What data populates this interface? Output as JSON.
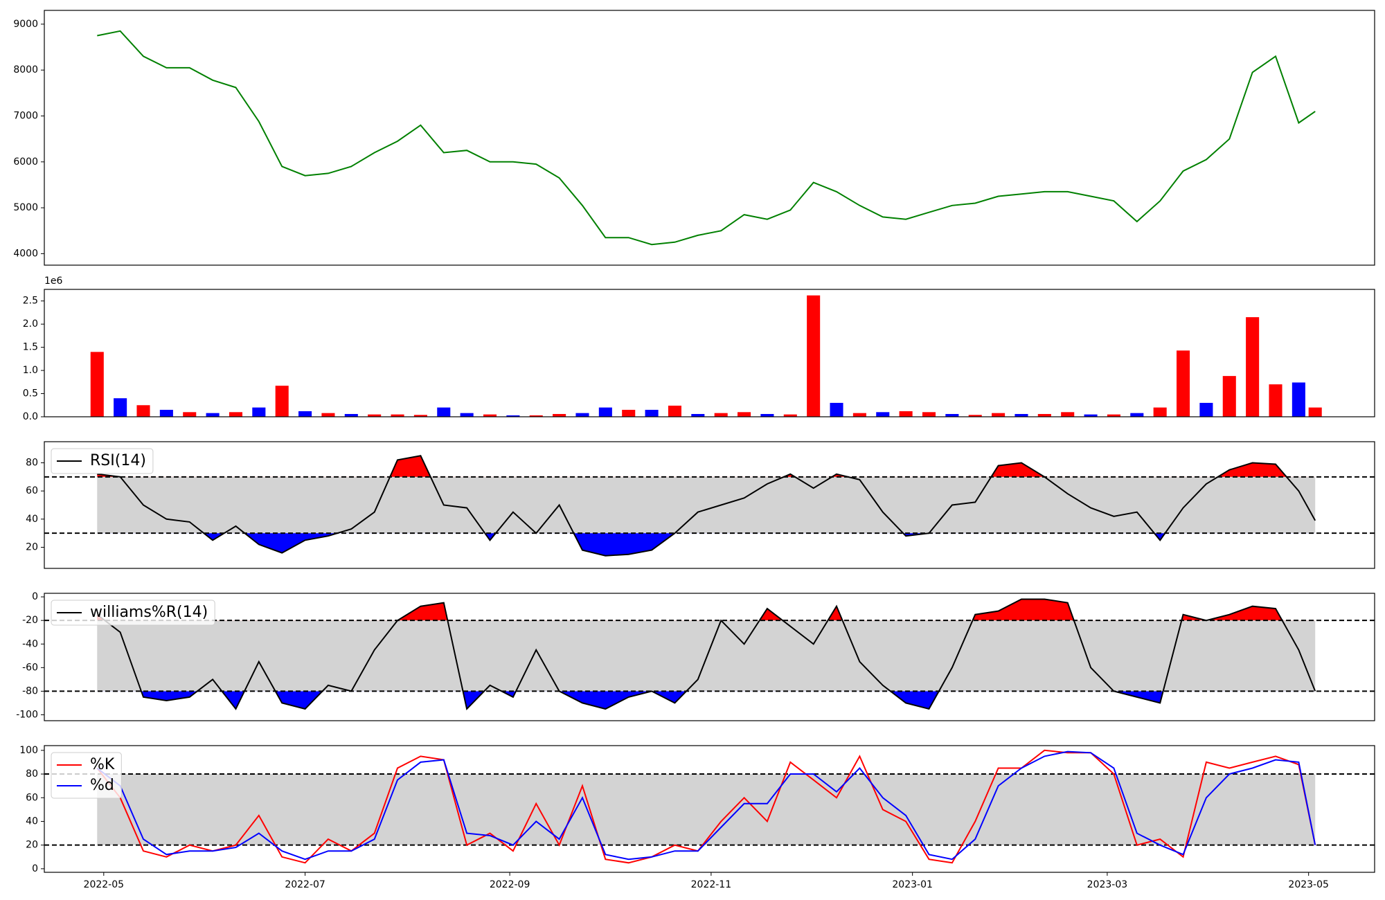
{
  "chart_data": [
    {
      "type": "line",
      "color": "#008000",
      "x": [
        "2022-04-29",
        "2022-05-06",
        "2022-05-13",
        "2022-05-20",
        "2022-05-27",
        "2022-06-03",
        "2022-06-10",
        "2022-06-17",
        "2022-06-24",
        "2022-07-01",
        "2022-07-08",
        "2022-07-15",
        "2022-07-22",
        "2022-07-29",
        "2022-08-05",
        "2022-08-12",
        "2022-08-19",
        "2022-08-26",
        "2022-09-02",
        "2022-09-09",
        "2022-09-16",
        "2022-09-23",
        "2022-09-30",
        "2022-10-07",
        "2022-10-14",
        "2022-10-21",
        "2022-10-28",
        "2022-11-04",
        "2022-11-11",
        "2022-11-18",
        "2022-11-25",
        "2022-12-02",
        "2022-12-09",
        "2022-12-16",
        "2022-12-23",
        "2022-12-30",
        "2023-01-06",
        "2023-01-13",
        "2023-01-20",
        "2023-01-27",
        "2023-02-03",
        "2023-02-10",
        "2023-02-17",
        "2023-02-24",
        "2023-03-03",
        "2023-03-10",
        "2023-03-17",
        "2023-03-24",
        "2023-03-31",
        "2023-04-07",
        "2023-04-14",
        "2023-04-21",
        "2023-04-28",
        "2023-05-03"
      ],
      "values": [
        8750,
        8850,
        8300,
        8050,
        8050,
        7780,
        7620,
        6880,
        5900,
        5700,
        5750,
        5900,
        6200,
        6450,
        6800,
        6200,
        6250,
        6000,
        6000,
        5950,
        5650,
        5050,
        4350,
        4350,
        4200,
        4250,
        4400,
        4500,
        4850,
        4750,
        4950,
        5550,
        5350,
        5050,
        4800,
        4750,
        4900,
        5050,
        5100,
        5250,
        5300,
        5350,
        5350,
        5250,
        5150,
        4700,
        5150,
        5800,
        6050,
        6500,
        7950,
        8300,
        6850,
        7100
      ],
      "xlim": [
        "2022-04-13",
        "2023-05-21"
      ],
      "ylim": [
        3750,
        9300
      ],
      "yticks": [
        4000,
        5000,
        6000,
        7000,
        8000,
        9000
      ]
    },
    {
      "type": "bar",
      "offset_label": "1e6",
      "x": [
        "2022-04-29",
        "2022-05-06",
        "2022-05-13",
        "2022-05-20",
        "2022-05-27",
        "2022-06-03",
        "2022-06-10",
        "2022-06-17",
        "2022-06-24",
        "2022-07-01",
        "2022-07-08",
        "2022-07-15",
        "2022-07-22",
        "2022-07-29",
        "2022-08-05",
        "2022-08-12",
        "2022-08-19",
        "2022-08-26",
        "2022-09-02",
        "2022-09-09",
        "2022-09-16",
        "2022-09-23",
        "2022-09-30",
        "2022-10-07",
        "2022-10-14",
        "2022-10-21",
        "2022-10-28",
        "2022-11-04",
        "2022-11-11",
        "2022-11-18",
        "2022-11-25",
        "2022-12-02",
        "2022-12-09",
        "2022-12-16",
        "2022-12-23",
        "2022-12-30",
        "2023-01-06",
        "2023-01-13",
        "2023-01-20",
        "2023-01-27",
        "2023-02-03",
        "2023-02-10",
        "2023-02-17",
        "2023-02-24",
        "2023-03-03",
        "2023-03-10",
        "2023-03-17",
        "2023-03-24",
        "2023-03-31",
        "2023-04-07",
        "2023-04-14",
        "2023-04-21",
        "2023-04-28",
        "2023-05-03"
      ],
      "values": [
        1400000,
        400000,
        250000,
        150000,
        100000,
        80000,
        100000,
        200000,
        670000,
        120000,
        80000,
        60000,
        50000,
        50000,
        40000,
        200000,
        80000,
        50000,
        30000,
        30000,
        60000,
        80000,
        200000,
        150000,
        150000,
        240000,
        60000,
        80000,
        100000,
        60000,
        50000,
        2620000,
        300000,
        80000,
        100000,
        120000,
        100000,
        60000,
        40000,
        80000,
        60000,
        60000,
        100000,
        50000,
        50000,
        80000,
        200000,
        1430000,
        300000,
        880000,
        2150000,
        700000,
        740000,
        200000
      ],
      "colors": [
        "red",
        "blue",
        "red",
        "blue",
        "red",
        "blue",
        "red",
        "blue",
        "red",
        "blue",
        "red",
        "blue",
        "red",
        "red",
        "red",
        "blue",
        "blue",
        "red",
        "blue",
        "red",
        "red",
        "blue",
        "blue",
        "red",
        "blue",
        "red",
        "blue",
        "red",
        "red",
        "blue",
        "red",
        "red",
        "blue",
        "red",
        "blue",
        "red",
        "red",
        "blue",
        "red",
        "red",
        "blue",
        "red",
        "red",
        "blue",
        "red",
        "blue",
        "red",
        "red",
        "blue",
        "red",
        "red",
        "red",
        "blue",
        "red"
      ],
      "xlim": [
        "2022-04-13",
        "2023-05-21"
      ],
      "ylim": [
        0,
        2750000
      ],
      "yticks": [
        {
          "value": 0,
          "label": "0.0"
        },
        {
          "value": 500000,
          "label": "0.5"
        },
        {
          "value": 1000000,
          "label": "1.0"
        },
        {
          "value": 1500000,
          "label": "1.5"
        },
        {
          "value": 2000000,
          "label": "2.0"
        },
        {
          "value": 2500000,
          "label": "2.5"
        }
      ]
    },
    {
      "type": "indicator",
      "legend": "upper left",
      "hlines": [
        30,
        70
      ],
      "band_color": "#d3d3d3",
      "above_color": "red",
      "below_color": "blue",
      "x": [
        "2022-04-29",
        "2022-05-06",
        "2022-05-13",
        "2022-05-20",
        "2022-05-27",
        "2022-06-03",
        "2022-06-10",
        "2022-06-17",
        "2022-06-24",
        "2022-07-01",
        "2022-07-08",
        "2022-07-15",
        "2022-07-22",
        "2022-07-29",
        "2022-08-05",
        "2022-08-12",
        "2022-08-19",
        "2022-08-26",
        "2022-09-02",
        "2022-09-09",
        "2022-09-16",
        "2022-09-23",
        "2022-09-30",
        "2022-10-07",
        "2022-10-14",
        "2022-10-21",
        "2022-10-28",
        "2022-11-04",
        "2022-11-11",
        "2022-11-18",
        "2022-11-25",
        "2022-12-02",
        "2022-12-09",
        "2022-12-16",
        "2022-12-23",
        "2022-12-30",
        "2023-01-06",
        "2023-01-13",
        "2023-01-20",
        "2023-01-27",
        "2023-02-03",
        "2023-02-10",
        "2023-02-17",
        "2023-02-24",
        "2023-03-03",
        "2023-03-10",
        "2023-03-17",
        "2023-03-24",
        "2023-03-31",
        "2023-04-07",
        "2023-04-14",
        "2023-04-21",
        "2023-04-28",
        "2023-05-03"
      ],
      "series": [
        {
          "name": "RSI(14)",
          "color": "black",
          "values": [
            72,
            70,
            50,
            40,
            38,
            25,
            35,
            22,
            16,
            25,
            28,
            33,
            45,
            82,
            85,
            50,
            48,
            25,
            45,
            30,
            50,
            18,
            14,
            15,
            18,
            30,
            45,
            50,
            55,
            65,
            72,
            62,
            72,
            68,
            45,
            28,
            30,
            50,
            52,
            78,
            80,
            70,
            58,
            48,
            42,
            45,
            25,
            48,
            65,
            75,
            80,
            79,
            60,
            39
          ]
        }
      ],
      "xlim": [
        "2022-04-13",
        "2023-05-21"
      ],
      "ylim": [
        5,
        95
      ],
      "yticks": [
        20,
        40,
        60,
        80
      ]
    },
    {
      "type": "indicator",
      "legend": "upper left",
      "hlines": [
        -80,
        -20
      ],
      "band_color": "#d3d3d3",
      "above_color": "red",
      "below_color": "blue",
      "x": [
        "2022-04-29",
        "2022-05-06",
        "2022-05-13",
        "2022-05-20",
        "2022-05-27",
        "2022-06-03",
        "2022-06-10",
        "2022-06-17",
        "2022-06-24",
        "2022-07-01",
        "2022-07-08",
        "2022-07-15",
        "2022-07-22",
        "2022-07-29",
        "2022-08-05",
        "2022-08-12",
        "2022-08-19",
        "2022-08-26",
        "2022-09-02",
        "2022-09-09",
        "2022-09-16",
        "2022-09-23",
        "2022-09-30",
        "2022-10-07",
        "2022-10-14",
        "2022-10-21",
        "2022-10-28",
        "2022-11-04",
        "2022-11-11",
        "2022-11-18",
        "2022-11-25",
        "2022-12-02",
        "2022-12-09",
        "2022-12-16",
        "2022-12-23",
        "2022-12-30",
        "2023-01-06",
        "2023-01-13",
        "2023-01-20",
        "2023-01-27",
        "2023-02-03",
        "2023-02-10",
        "2023-02-17",
        "2023-02-24",
        "2023-03-03",
        "2023-03-10",
        "2023-03-17",
        "2023-03-24",
        "2023-03-31",
        "2023-04-07",
        "2023-04-14",
        "2023-04-21",
        "2023-04-28",
        "2023-05-03"
      ],
      "series": [
        {
          "name": "williams%R(14)",
          "color": "black",
          "values": [
            -15,
            -30,
            -85,
            -88,
            -85,
            -70,
            -95,
            -55,
            -90,
            -95,
            -75,
            -80,
            -45,
            -20,
            -8,
            -5,
            -95,
            -75,
            -85,
            -45,
            -80,
            -90,
            -95,
            -85,
            -80,
            -90,
            -70,
            -20,
            -40,
            -10,
            -25,
            -40,
            -8,
            -55,
            -75,
            -90,
            -95,
            -60,
            -15,
            -12,
            -2,
            -2,
            -5,
            -60,
            -80,
            -85,
            -90,
            -15,
            -20,
            -15,
            -8,
            -10,
            -45,
            -80
          ]
        }
      ],
      "xlim": [
        "2022-04-13",
        "2023-05-21"
      ],
      "ylim": [
        -105,
        3
      ],
      "yticks": [
        -100,
        -80,
        -60,
        -40,
        -20,
        0
      ]
    },
    {
      "type": "indicator",
      "legend": "upper left",
      "hlines": [
        20,
        80
      ],
      "band_color": "#d3d3d3",
      "x": [
        "2022-04-29",
        "2022-05-06",
        "2022-05-13",
        "2022-05-20",
        "2022-05-27",
        "2022-06-03",
        "2022-06-10",
        "2022-06-17",
        "2022-06-24",
        "2022-07-01",
        "2022-07-08",
        "2022-07-15",
        "2022-07-22",
        "2022-07-29",
        "2022-08-05",
        "2022-08-12",
        "2022-08-19",
        "2022-08-26",
        "2022-09-02",
        "2022-09-09",
        "2022-09-16",
        "2022-09-23",
        "2022-09-30",
        "2022-10-07",
        "2022-10-14",
        "2022-10-21",
        "2022-10-28",
        "2022-11-04",
        "2022-11-11",
        "2022-11-18",
        "2022-11-25",
        "2022-12-02",
        "2022-12-09",
        "2022-12-16",
        "2022-12-23",
        "2022-12-30",
        "2023-01-06",
        "2023-01-13",
        "2023-01-20",
        "2023-01-27",
        "2023-02-03",
        "2023-02-10",
        "2023-02-17",
        "2023-02-24",
        "2023-03-03",
        "2023-03-10",
        "2023-03-17",
        "2023-03-24",
        "2023-03-31",
        "2023-04-07",
        "2023-04-14",
        "2023-04-21",
        "2023-04-28",
        "2023-05-03"
      ],
      "series": [
        {
          "name": "%K",
          "color": "red",
          "values": [
            85,
            60,
            15,
            10,
            20,
            15,
            20,
            45,
            10,
            5,
            25,
            15,
            30,
            85,
            95,
            92,
            20,
            30,
            15,
            55,
            20,
            70,
            8,
            5,
            10,
            20,
            15,
            40,
            60,
            40,
            90,
            75,
            60,
            95,
            50,
            40,
            8,
            5,
            40,
            85,
            85,
            100,
            98,
            98,
            80,
            20,
            25,
            10,
            90,
            85,
            90,
            95,
            88,
            20
          ]
        },
        {
          "name": "%d",
          "color": "blue",
          "values": [
            85,
            70,
            25,
            12,
            15,
            15,
            18,
            30,
            15,
            8,
            15,
            15,
            25,
            75,
            90,
            92,
            30,
            28,
            20,
            40,
            25,
            60,
            12,
            8,
            10,
            15,
            15,
            35,
            55,
            55,
            80,
            80,
            65,
            85,
            60,
            45,
            12,
            8,
            25,
            70,
            85,
            95,
            99,
            98,
            85,
            30,
            20,
            12,
            60,
            80,
            85,
            92,
            90,
            20
          ]
        }
      ],
      "xlim": [
        "2022-04-13",
        "2023-05-21"
      ],
      "ylim": [
        -3,
        104
      ],
      "yticks": [
        0,
        20,
        40,
        60,
        80,
        100
      ],
      "xticks": [
        {
          "value": "2022-05-01",
          "label": "2022-05"
        },
        {
          "value": "2022-07-01",
          "label": "2022-07"
        },
        {
          "value": "2022-09-01",
          "label": "2022-09"
        },
        {
          "value": "2022-11-01",
          "label": "2022-11"
        },
        {
          "value": "2023-01-01",
          "label": "2023-01"
        },
        {
          "value": "2023-03-01",
          "label": "2023-03"
        },
        {
          "value": "2023-05-01",
          "label": "2023-05"
        }
      ]
    }
  ]
}
